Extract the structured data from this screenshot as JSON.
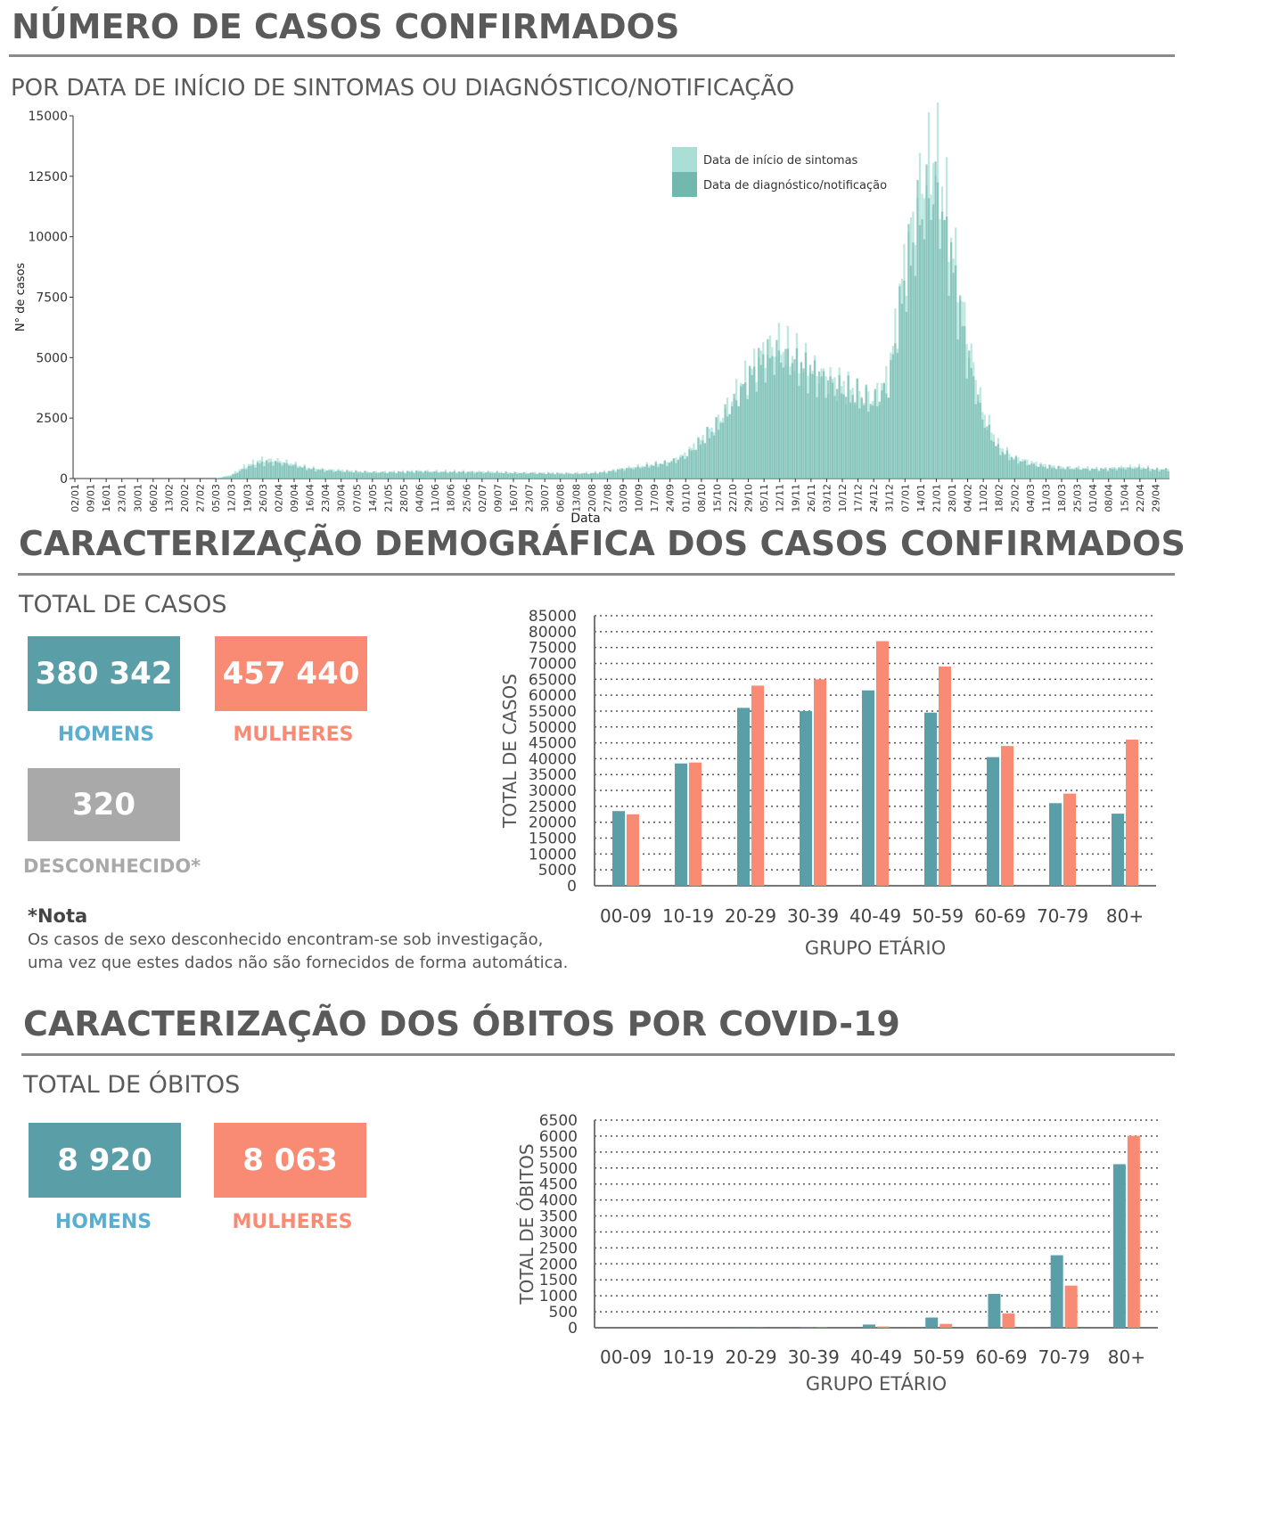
{
  "colors": {
    "teal": "#5a9fa8",
    "salmon": "#f98b74",
    "grey": "#a9a9a9",
    "light_teal": "#a9dfd4",
    "dark_teal": "#72b8ae",
    "men_label": "#5aaed0"
  },
  "section1": {
    "title": "NÚMERO DE CASOS CONFIRMADOS",
    "subtitle": "POR DATA DE INÍCIO DE SINTOMAS OU DIAGNÓSTICO/NOTIFICAÇÃO"
  },
  "section2": {
    "title": "CARACTERIZAÇÃO DEMOGRÁFICA DOS CASOS CONFIRMADOS",
    "total_label": "TOTAL DE CASOS",
    "men_value": "380 342",
    "men_label": "HOMENS",
    "women_value": "457 440",
    "women_label": "MULHERES",
    "unknown_value": "320",
    "unknown_label": "DESCONHECIDO*",
    "note_title": "*Nota",
    "note_line1": "Os casos de sexo desconhecido encontram-se sob investigação,",
    "note_line2": "uma vez que estes dados não são fornecidos de forma automática."
  },
  "section3": {
    "title": "CARACTERIZAÇÃO DOS ÓBITOS POR COVID-19",
    "total_label": "TOTAL DE ÓBITOS",
    "men_value": "8 920",
    "men_label": "HOMENS",
    "women_value": "8 063",
    "women_label": "MULHERES"
  },
  "chart_data": [
    {
      "type": "bar",
      "subtype": "daily-histogram",
      "xlabel": "Data",
      "ylabel": "N° de casos",
      "ylim": [
        0,
        15000
      ],
      "yticks": [
        0,
        2500,
        5000,
        7500,
        10000,
        12500,
        15000
      ],
      "legend_position": "top-right",
      "x_tick_labels": [
        "02/01",
        "09/01",
        "16/01",
        "23/01",
        "30/01",
        "06/02",
        "13/02",
        "20/02",
        "27/02",
        "05/03",
        "12/03",
        "19/03",
        "26/03",
        "02/04",
        "09/04",
        "16/04",
        "23/04",
        "30/04",
        "07/05",
        "14/05",
        "21/05",
        "28/05",
        "04/06",
        "11/06",
        "18/06",
        "25/06",
        "02/07",
        "09/07",
        "16/07",
        "23/07",
        "30/07",
        "06/08",
        "13/08",
        "20/08",
        "27/08",
        "03/09",
        "10/09",
        "17/09",
        "24/09",
        "01/10",
        "08/10",
        "15/10",
        "22/10",
        "29/10",
        "05/11",
        "12/11",
        "19/11",
        "26/11",
        "03/12",
        "10/12",
        "17/12",
        "24/12",
        "31/12",
        "07/01",
        "14/01",
        "21/01",
        "28/01",
        "04/02",
        "11/02",
        "18/02",
        "25/02",
        "04/03",
        "11/03",
        "18/03",
        "25/03",
        "01/04",
        "08/04",
        "15/04",
        "22/04",
        "29/04"
      ],
      "series": [
        {
          "name": "Data de início de sintomas",
          "weekly_values": [
            0,
            0,
            0,
            0,
            0,
            0,
            0,
            0,
            0,
            0,
            150,
            550,
            800,
            750,
            600,
            450,
            380,
            350,
            300,
            280,
            280,
            300,
            320,
            300,
            300,
            300,
            290,
            280,
            250,
            250,
            240,
            230,
            230,
            240,
            300,
            420,
            500,
            600,
            700,
            1000,
            1600,
            2300,
            3200,
            4300,
            5200,
            5500,
            5000,
            4600,
            4200,
            3900,
            3600,
            3300,
            4200,
            8800,
            12000,
            13500,
            10000,
            6000,
            2800,
            1400,
            900,
            700,
            550,
            480,
            450,
            420,
            420,
            480,
            500,
            400
          ]
        },
        {
          "name": "Data de diagnóstico/notificação",
          "weekly_values": [
            0,
            0,
            0,
            0,
            0,
            0,
            0,
            0,
            0,
            0,
            100,
            450,
            650,
            650,
            550,
            400,
            330,
            300,
            270,
            250,
            250,
            260,
            280,
            270,
            260,
            260,
            250,
            240,
            220,
            220,
            210,
            200,
            200,
            210,
            260,
            380,
            450,
            550,
            650,
            900,
            1500,
            2100,
            3000,
            4000,
            4900,
            5100,
            4800,
            4400,
            4000,
            3700,
            3400,
            3100,
            3800,
            8000,
            10800,
            12000,
            9000,
            5200,
            2500,
            1200,
            800,
            600,
            480,
            420,
            400,
            380,
            380,
            420,
            440,
            360
          ]
        }
      ]
    },
    {
      "type": "bar",
      "xlabel": "GRUPO ETÁRIO",
      "ylabel": "TOTAL DE CASOS",
      "ylim": [
        0,
        85000
      ],
      "ytick_step": 5000,
      "grid": true,
      "categories": [
        "00-09",
        "10-19",
        "20-29",
        "30-39",
        "40-49",
        "50-59",
        "60-69",
        "70-79",
        "80+"
      ],
      "series": [
        {
          "name": "HOMENS",
          "values": [
            23500,
            38500,
            56000,
            55000,
            61500,
            54500,
            40500,
            26000,
            22700
          ]
        },
        {
          "name": "MULHERES",
          "values": [
            22500,
            38800,
            63000,
            65000,
            77000,
            69000,
            44000,
            29000,
            46000
          ]
        }
      ]
    },
    {
      "type": "bar",
      "xlabel": "GRUPO ETÁRIO",
      "ylabel": "TOTAL DE ÓBITOS",
      "ylim": [
        0,
        6500
      ],
      "ytick_step": 500,
      "grid": true,
      "categories": [
        "00-09",
        "10-19",
        "20-29",
        "30-39",
        "40-49",
        "50-59",
        "60-69",
        "70-79",
        "80+"
      ],
      "series": [
        {
          "name": "HOMENS",
          "values": [
            0,
            2,
            10,
            25,
            100,
            320,
            1060,
            2270,
            5120
          ]
        },
        {
          "name": "MULHERES",
          "values": [
            0,
            1,
            5,
            15,
            40,
            120,
            450,
            1320,
            6010
          ]
        }
      ]
    }
  ]
}
